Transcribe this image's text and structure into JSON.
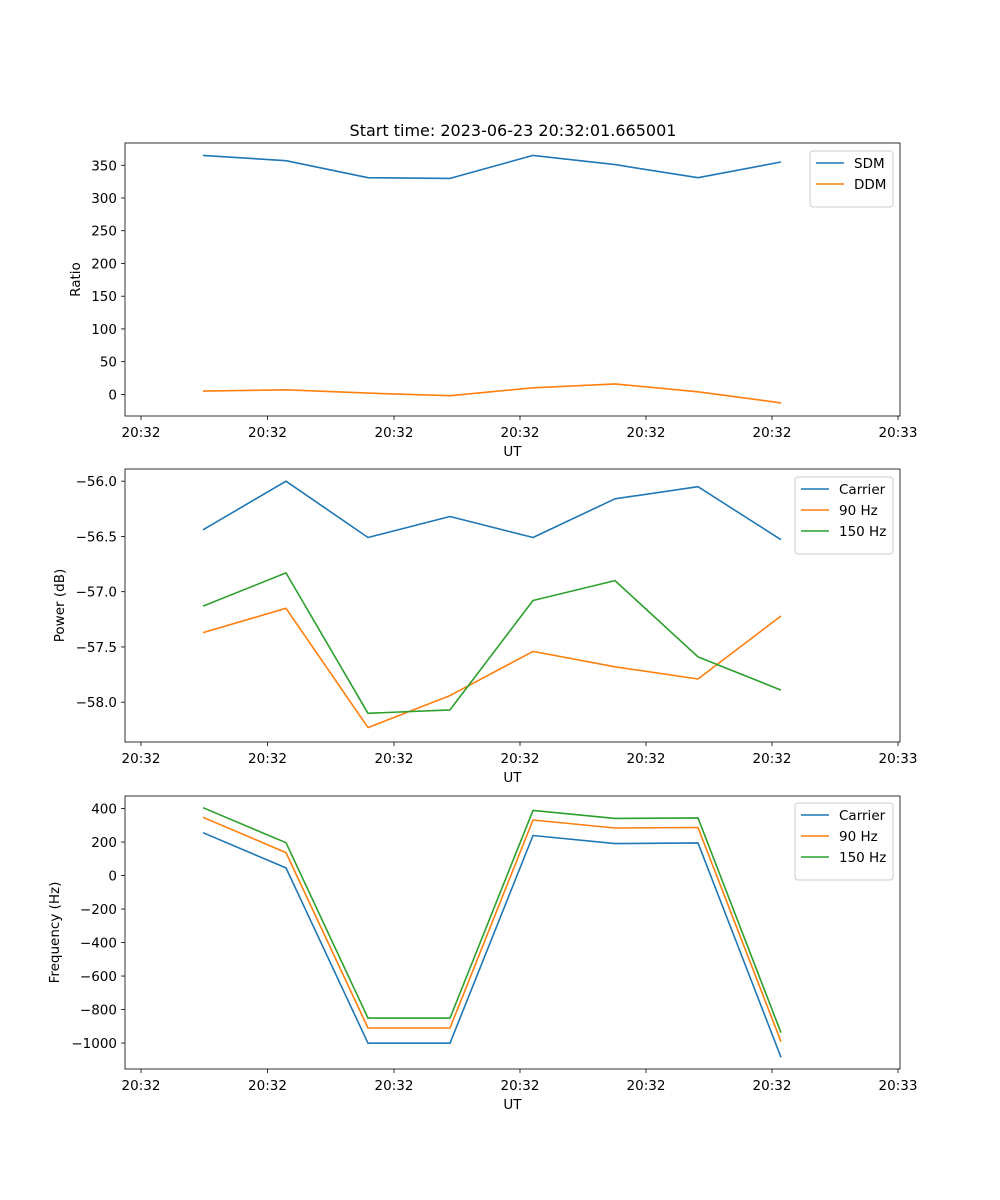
{
  "title": "Start time: 2023-06-23 20:32:01.665001",
  "chart_data": [
    {
      "type": "line",
      "xlabel": "UT",
      "ylabel": "Ratio",
      "x_tick_labels": [
        "20:32",
        "20:32",
        "20:32",
        "20:32",
        "20:32",
        "20:32",
        "20:33"
      ],
      "yticks": [
        0,
        50,
        100,
        150,
        200,
        250,
        300,
        350
      ],
      "ylim": [
        -33,
        384
      ],
      "legend_position": "top-right",
      "series": [
        {
          "name": "SDM",
          "color": "#1f77b4",
          "values": [
            365,
            357,
            331,
            330,
            365,
            351,
            331,
            355
          ]
        },
        {
          "name": "DDM",
          "color": "#ff7f0e",
          "values": [
            5,
            7,
            2,
            -2,
            10,
            16,
            4,
            -13
          ]
        }
      ]
    },
    {
      "type": "line",
      "xlabel": "UT",
      "ylabel": "Power (dB)",
      "x_tick_labels": [
        "20:32",
        "20:32",
        "20:32",
        "20:32",
        "20:32",
        "20:32",
        "20:33"
      ],
      "yticks": [
        -58.0,
        -57.5,
        -57.0,
        -56.5,
        -56.0
      ],
      "ytick_labels": [
        "−58.0",
        "−57.5",
        "−57.0",
        "−56.5",
        "−56.0"
      ],
      "ylim": [
        -58.36,
        -55.89
      ],
      "legend_position": "top-right",
      "series": [
        {
          "name": "Carrier",
          "color": "#1f77b4",
          "values": [
            -56.44,
            -56.0,
            -56.51,
            -56.32,
            -56.51,
            -56.16,
            -56.05,
            -56.53
          ]
        },
        {
          "name": "90 Hz",
          "color": "#ff7f0e",
          "values": [
            -57.37,
            -57.15,
            -58.23,
            -57.94,
            -57.54,
            -57.68,
            -57.79,
            -57.22
          ]
        },
        {
          "name": "150 Hz",
          "color": "#2ca02c",
          "values": [
            -57.13,
            -56.83,
            -58.1,
            -58.07,
            -57.08,
            -56.9,
            -57.59,
            -57.89
          ]
        }
      ]
    },
    {
      "type": "line",
      "xlabel": "UT",
      "ylabel": "Frequency (Hz)",
      "x_tick_labels": [
        "20:32",
        "20:32",
        "20:32",
        "20:32",
        "20:32",
        "20:32",
        "20:33"
      ],
      "yticks": [
        -1000,
        -800,
        -600,
        -400,
        -200,
        0,
        200,
        400
      ],
      "ytick_labels": [
        "−1000",
        "−800",
        "−600",
        "−400",
        "−200",
        "0",
        "200",
        "400"
      ],
      "ylim": [
        -1155,
        475
      ],
      "legend_position": "top-right",
      "series": [
        {
          "name": "Carrier",
          "color": "#1f77b4",
          "values": [
            256,
            46,
            -1001,
            -1001,
            239,
            191,
            195,
            -1085
          ]
        },
        {
          "name": "90 Hz",
          "color": "#ff7f0e",
          "values": [
            348,
            137,
            -910,
            -910,
            332,
            284,
            287,
            -992
          ]
        },
        {
          "name": "150 Hz",
          "color": "#2ca02c",
          "values": [
            405,
            196,
            -851,
            -851,
            389,
            341,
            344,
            -938
          ]
        }
      ]
    }
  ]
}
